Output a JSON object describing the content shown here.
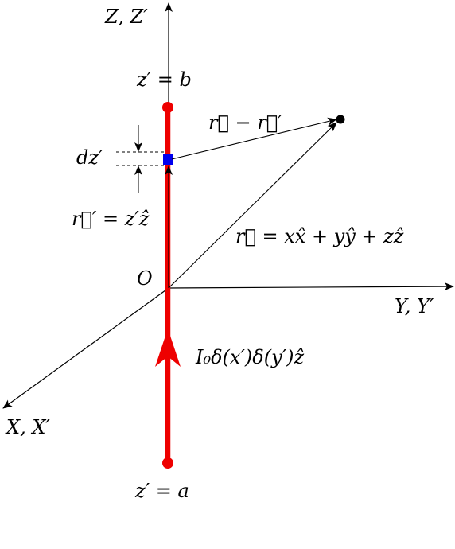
{
  "diagram": {
    "colors": {
      "wire": "#ee0000",
      "element": "#0000ee",
      "ink": "#000000"
    },
    "labels": {
      "z_axis": "Z, Z′",
      "y_axis": "Y, Y′",
      "x_axis": "X, X′",
      "origin": "O",
      "z_top": "z′ = b",
      "z_bottom": "z′ = a",
      "dz": "dz′",
      "r_prime": "r⃗′ = z′ẑ",
      "r_minus_r_prime": "r⃗ − r⃗′",
      "r_vec": "r⃗ = xx̂ + yŷ + zẑ",
      "current": "I₀δ(x′)δ(y′)ẑ"
    }
  }
}
